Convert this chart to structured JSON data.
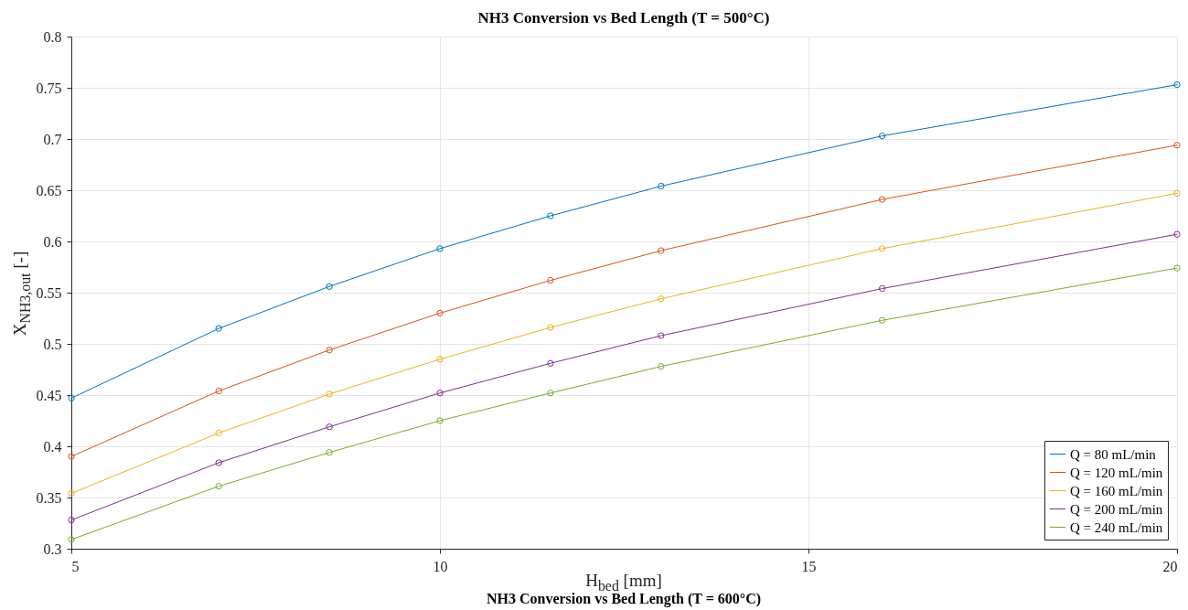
{
  "chart_data": {
    "type": "line",
    "title": "NH3 Conversion vs Bed Length (T = 500°C)",
    "xlabel": "H$_{bed}$  [mm]",
    "ylabel": "X$_{NH3,out}$  [-]",
    "x": [
      5,
      7,
      8.5,
      10,
      11.5,
      13,
      16,
      20
    ],
    "series": [
      {
        "name": "Q = 80 mL/min",
        "color": "#0072bd",
        "values": [
          0.447,
          0.515,
          0.556,
          0.593,
          0.625,
          0.654,
          0.703,
          0.753
        ]
      },
      {
        "name": "Q = 120 mL/min",
        "color": "#d95319",
        "values": [
          0.39,
          0.454,
          0.494,
          0.53,
          0.562,
          0.591,
          0.641,
          0.694
        ]
      },
      {
        "name": "Q = 160 mL/min",
        "color": "#edb120",
        "values": [
          0.354,
          0.413,
          0.451,
          0.485,
          0.516,
          0.544,
          0.593,
          0.647
        ]
      },
      {
        "name": "Q = 200 mL/min",
        "color": "#7e2f8e",
        "values": [
          0.328,
          0.384,
          0.419,
          0.452,
          0.481,
          0.508,
          0.554,
          0.607
        ]
      },
      {
        "name": "Q = 240 mL/min",
        "color": "#77ac30",
        "values": [
          0.309,
          0.361,
          0.394,
          0.425,
          0.452,
          0.478,
          0.523,
          0.574
        ]
      }
    ],
    "xlim": [
      5,
      20
    ],
    "xticks": [
      5,
      10,
      15,
      20
    ],
    "ylim": [
      0.3,
      0.8
    ],
    "yticks": [
      0.3,
      0.35,
      0.4,
      0.45,
      0.5,
      0.55,
      0.6,
      0.65,
      0.7,
      0.75,
      0.8
    ],
    "grid": true,
    "legend": "bottom right",
    "marker": "circle",
    "line_style": "solid",
    "annotations": [
      "NH3 Conversion vs Bed Length (T = 600°C)"
    ]
  }
}
